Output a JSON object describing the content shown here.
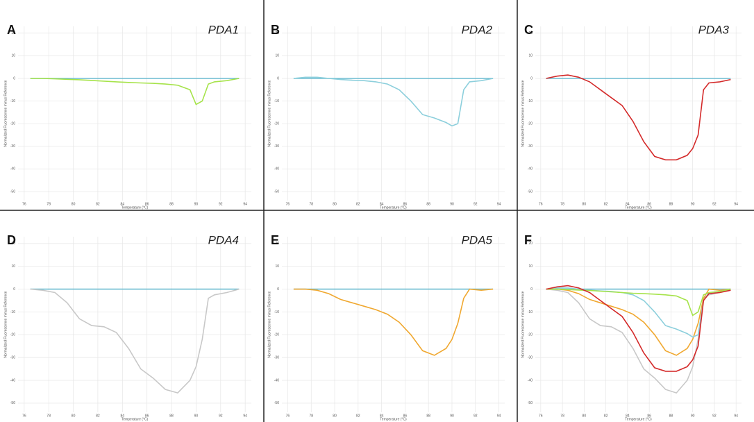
{
  "chart_data": [
    {
      "type": "line",
      "label": "A",
      "title": "PDA1",
      "xlabel": "Temperature (°C)",
      "ylabel": "Normalized Fluorescence minus Reference",
      "x": [
        76.5,
        77.5,
        78.5,
        79.5,
        80.5,
        81.5,
        82.5,
        83.5,
        84.5,
        85.5,
        86.5,
        87.5,
        88.5,
        89.5,
        90,
        90.5,
        91,
        91.5,
        92.5,
        93.5
      ],
      "series": [
        {
          "color": "#6bbcd0",
          "values": [
            0,
            0,
            0,
            0,
            0,
            0,
            0,
            0,
            0,
            0,
            0,
            0,
            0,
            0,
            0,
            0,
            0,
            0,
            0,
            0
          ]
        },
        {
          "color": "#a6e34a",
          "values": [
            0,
            0,
            -0.2,
            -0.4,
            -0.6,
            -0.9,
            -1.2,
            -1.5,
            -1.8,
            -2,
            -2.2,
            -2.5,
            -3,
            -5,
            -11.5,
            -10,
            -2.5,
            -1.5,
            -1,
            0
          ]
        }
      ],
      "xlim": [
        75.5,
        94.5
      ],
      "ylim": [
        -54,
        23
      ],
      "xticks": [
        76,
        78,
        80,
        82,
        84,
        86,
        88,
        90,
        92,
        94
      ],
      "yticks": [
        20,
        10,
        0,
        -10,
        -20,
        -30,
        -40,
        -50
      ],
      "grid": true
    },
    {
      "type": "line",
      "label": "B",
      "title": "PDA2",
      "xlabel": "Temperature (°C)",
      "ylabel": "Normalized Fluorescence minus Reference",
      "x": [
        76.5,
        77.5,
        78.5,
        79.5,
        80.5,
        81.5,
        82.5,
        83.5,
        84.5,
        85.5,
        86.5,
        87.5,
        88.5,
        89.5,
        90,
        90.5,
        91,
        91.5,
        92.5,
        93.5
      ],
      "series": [
        {
          "color": "#6bbcd0",
          "values": [
            0,
            0,
            0,
            0,
            0,
            0,
            0,
            0,
            0,
            0,
            0,
            0,
            0,
            0,
            0,
            0,
            0,
            0,
            0,
            0
          ]
        },
        {
          "color": "#8ccfdc",
          "values": [
            0,
            0.5,
            0.5,
            0,
            -0.5,
            -0.8,
            -1,
            -1.5,
            -2.5,
            -5,
            -10,
            -16,
            -17.5,
            -19.5,
            -21,
            -20,
            -5,
            -1.5,
            -1,
            0
          ]
        }
      ],
      "xlim": [
        75.5,
        94.5
      ],
      "ylim": [
        -54,
        23
      ],
      "xticks": [
        76,
        78,
        80,
        82,
        84,
        86,
        88,
        90,
        92,
        94
      ],
      "yticks": [
        20,
        10,
        0,
        -10,
        -20,
        -30,
        -40,
        -50
      ],
      "grid": true
    },
    {
      "type": "line",
      "label": "C",
      "title": "PDA3",
      "xlabel": "Temperature (°C)",
      "ylabel": "Normalized Fluorescence minus Reference",
      "x": [
        76.5,
        77.5,
        78.5,
        79.5,
        80.5,
        81.5,
        82.5,
        83.5,
        84.5,
        85.5,
        86.5,
        87.5,
        88.5,
        89.5,
        90,
        90.5,
        91,
        91.5,
        92.5,
        93.5
      ],
      "series": [
        {
          "color": "#6bbcd0",
          "values": [
            0,
            0,
            0,
            0,
            0,
            0,
            0,
            0,
            0,
            0,
            0,
            0,
            0,
            0,
            0,
            0,
            0,
            0,
            0,
            0
          ]
        },
        {
          "color": "#d42a2a",
          "values": [
            0,
            1,
            1.5,
            0.5,
            -1.5,
            -5,
            -8.5,
            -12,
            -19,
            -28,
            -34.5,
            -36,
            -36,
            -34,
            -31,
            -25,
            -5,
            -2,
            -1.5,
            -0.5
          ]
        }
      ],
      "xlim": [
        75.5,
        94.5
      ],
      "ylim": [
        -54,
        23
      ],
      "xticks": [
        76,
        78,
        80,
        82,
        84,
        86,
        88,
        90,
        92,
        94
      ],
      "yticks": [
        20,
        10,
        0,
        -10,
        -20,
        -30,
        -40,
        -50
      ],
      "grid": true
    },
    {
      "type": "line",
      "label": "D",
      "title": "PDA4",
      "xlabel": "Temperature (°C)",
      "ylabel": "Normalized Fluorescence minus Reference",
      "x": [
        76.5,
        77.5,
        78.5,
        79.5,
        80.5,
        81.5,
        82.5,
        83.5,
        84.5,
        85.5,
        86.5,
        87.5,
        88.5,
        89.5,
        90,
        90.5,
        91,
        91.5,
        92.5,
        93.5
      ],
      "series": [
        {
          "color": "#6bbcd0",
          "values": [
            0,
            0,
            0,
            0,
            0,
            0,
            0,
            0,
            0,
            0,
            0,
            0,
            0,
            0,
            0,
            0,
            0,
            0,
            0,
            0
          ]
        },
        {
          "color": "#c8c8c8",
          "values": [
            0,
            -0.5,
            -1.5,
            -6,
            -13,
            -16,
            -16.5,
            -19,
            -26,
            -35,
            -39,
            -44,
            -45.5,
            -40,
            -34,
            -22,
            -4,
            -2.5,
            -1.5,
            0
          ]
        }
      ],
      "xlim": [
        75.5,
        94.5
      ],
      "ylim": [
        -54,
        23
      ],
      "xticks": [
        76,
        78,
        80,
        82,
        84,
        86,
        88,
        90,
        92,
        94
      ],
      "yticks": [
        20,
        10,
        0,
        -10,
        -20,
        -30,
        -40,
        -50
      ],
      "grid": true
    },
    {
      "type": "line",
      "label": "E",
      "title": "PDA5",
      "xlabel": "Temperature (°C)",
      "ylabel": "Normalized Fluorescence minus Reference",
      "x": [
        76.5,
        77.5,
        78.5,
        79.5,
        80.5,
        81.5,
        82.5,
        83.5,
        84.5,
        85.5,
        86.5,
        87.5,
        88.5,
        89.5,
        90,
        90.5,
        91,
        91.5,
        92.5,
        93.5
      ],
      "series": [
        {
          "color": "#6bbcd0",
          "values": [
            0,
            0,
            0,
            0,
            0,
            0,
            0,
            0,
            0,
            0,
            0,
            0,
            0,
            0,
            0,
            0,
            0,
            0,
            0,
            0
          ]
        },
        {
          "color": "#f0a830",
          "values": [
            0,
            0,
            -0.5,
            -2,
            -4.5,
            -6,
            -7.5,
            -9,
            -11,
            -14.5,
            -20,
            -27,
            -29,
            -26,
            -22,
            -15,
            -4,
            0,
            -0.5,
            0
          ]
        }
      ],
      "xlim": [
        75.5,
        94.5
      ],
      "ylim": [
        -54,
        23
      ],
      "xticks": [
        76,
        78,
        80,
        82,
        84,
        86,
        88,
        90,
        92,
        94
      ],
      "yticks": [
        20,
        10,
        0,
        -10,
        -20,
        -30,
        -40,
        -50
      ],
      "grid": true
    },
    {
      "type": "line",
      "label": "F",
      "xlabel": "Temperature (°C)",
      "ylabel": "Normalized Fluorescence minus Reference",
      "x": [
        76.5,
        77.5,
        78.5,
        79.5,
        80.5,
        81.5,
        82.5,
        83.5,
        84.5,
        85.5,
        86.5,
        87.5,
        88.5,
        89.5,
        90,
        90.5,
        91,
        91.5,
        92.5,
        93.5
      ],
      "series": [
        {
          "color": "#6bbcd0",
          "values": [
            0,
            0,
            0,
            0,
            0,
            0,
            0,
            0,
            0,
            0,
            0,
            0,
            0,
            0,
            0,
            0,
            0,
            0,
            0,
            0
          ]
        },
        {
          "color": "#c8c8c8",
          "values": [
            0,
            -0.5,
            -1.5,
            -6,
            -13,
            -16,
            -16.5,
            -19,
            -26,
            -35,
            -39,
            -44,
            -45.5,
            -40,
            -34,
            -22,
            -4,
            -2.5,
            -1.5,
            0
          ]
        },
        {
          "color": "#f0a830",
          "values": [
            0,
            0,
            -0.5,
            -2,
            -4.5,
            -6,
            -7.5,
            -9,
            -11,
            -14.5,
            -20,
            -27,
            -29,
            -26,
            -22,
            -15,
            -4,
            0,
            -0.5,
            0
          ]
        },
        {
          "color": "#8ccfdc",
          "values": [
            0,
            0.5,
            0.5,
            0,
            -0.5,
            -0.8,
            -1,
            -1.5,
            -2.5,
            -5,
            -10,
            -16,
            -17.5,
            -19.5,
            -21,
            -20,
            -5,
            -1.5,
            -1,
            0
          ]
        },
        {
          "color": "#a6e34a",
          "values": [
            0,
            0,
            -0.2,
            -0.4,
            -0.6,
            -0.9,
            -1.2,
            -1.5,
            -1.8,
            -2,
            -2.2,
            -2.5,
            -3,
            -5,
            -11.5,
            -10,
            -2.5,
            -1.5,
            -1,
            0
          ]
        },
        {
          "color": "#d42a2a",
          "values": [
            0,
            1,
            1.5,
            0.5,
            -1.5,
            -5,
            -8.5,
            -12,
            -19,
            -28,
            -34.5,
            -36,
            -36,
            -34,
            -31,
            -25,
            -5,
            -2,
            -1.5,
            -0.5
          ]
        }
      ],
      "xlim": [
        75.5,
        94.5
      ],
      "ylim": [
        -54,
        23
      ],
      "xticks": [
        76,
        78,
        80,
        82,
        84,
        86,
        88,
        90,
        92,
        94
      ],
      "yticks": [
        20,
        10,
        0,
        -10,
        -20,
        -30,
        -40,
        -50
      ],
      "grid": true
    }
  ]
}
